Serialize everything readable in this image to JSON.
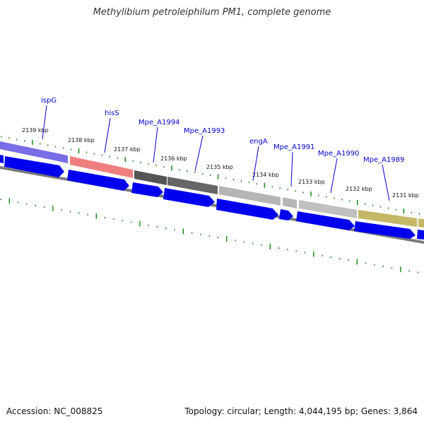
{
  "title": "Methylibium petroleiphilum PM1, complete genome",
  "footer": {
    "accession": "Accession: NC_008825",
    "summary": "Topology: circular; Length: 4,044,195 bp; Genes: 3,864"
  },
  "colors": {
    "cds": "#0000ee",
    "tick": "#118811",
    "backbone": "#777777",
    "label": "#0000cc"
  },
  "ticks": [
    {
      "label": "2139 kbp"
    },
    {
      "label": "2138 kbp"
    },
    {
      "label": "2137 kbp"
    },
    {
      "label": "2136 kbp"
    },
    {
      "label": "2135 kbp"
    },
    {
      "label": "2134 kbp"
    },
    {
      "label": "2133 kbp"
    },
    {
      "label": "2132 kbp"
    },
    {
      "label": "2131 kbp"
    }
  ],
  "genes": [
    {
      "label": "ispG"
    },
    {
      "label": "hisS"
    },
    {
      "label": "Mpe_A1994"
    },
    {
      "label": "Mpe_A1993"
    },
    {
      "label": "engA"
    },
    {
      "label": "Mpe_A1991"
    },
    {
      "label": "Mpe_A1990"
    },
    {
      "label": "Mpe_A1989"
    }
  ]
}
